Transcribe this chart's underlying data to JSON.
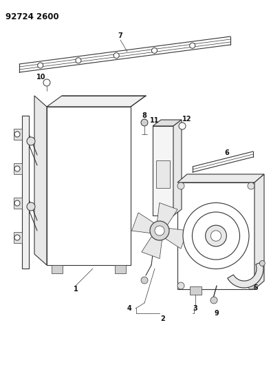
{
  "title": "92724 2600",
  "background_color": "#ffffff",
  "line_color": "#333333",
  "text_color": "#111111",
  "title_fontsize": 8.5,
  "label_fontsize": 7,
  "fig_width": 3.94,
  "fig_height": 5.33,
  "dpi": 100
}
